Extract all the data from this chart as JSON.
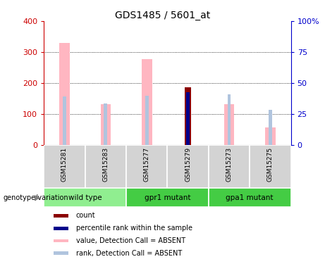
{
  "title": "GDS1485 / 5601_at",
  "samples": [
    "GSM15281",
    "GSM15283",
    "GSM15277",
    "GSM15279",
    "GSM15273",
    "GSM15275"
  ],
  "value_absent": [
    330,
    132,
    278,
    0,
    132,
    55
  ],
  "rank_absent_left": [
    157,
    134,
    158,
    0,
    162,
    113
  ],
  "count_value": [
    0,
    0,
    0,
    185,
    0,
    0
  ],
  "percentile_value_left": [
    0,
    0,
    0,
    170,
    0,
    0
  ],
  "ylim_left": [
    0,
    400
  ],
  "ylim_right": [
    0,
    100
  ],
  "yticks_left": [
    0,
    100,
    200,
    300,
    400
  ],
  "yticks_right": [
    0,
    25,
    50,
    75,
    100
  ],
  "yticklabels_right": [
    "0",
    "25",
    "50",
    "75",
    "100%"
  ],
  "color_value_absent": "#FFB6C1",
  "color_rank_absent": "#B0C4DE",
  "color_count": "#8B0000",
  "color_percentile": "#00008B",
  "left_tick_color": "#CC0000",
  "right_tick_color": "#0000CC",
  "sample_bg_color": "#D3D3D3",
  "group_spans": [
    [
      0,
      1,
      "wild type",
      "#90EE90"
    ],
    [
      2,
      3,
      "gpr1 mutant",
      "#44CC44"
    ],
    [
      4,
      5,
      "gpa1 mutant",
      "#44CC44"
    ]
  ],
  "title_fontsize": 10,
  "legend_items": [
    [
      "#8B0000",
      "count"
    ],
    [
      "#00008B",
      "percentile rank within the sample"
    ],
    [
      "#FFB6C1",
      "value, Detection Call = ABSENT"
    ],
    [
      "#B0C4DE",
      "rank, Detection Call = ABSENT"
    ]
  ]
}
